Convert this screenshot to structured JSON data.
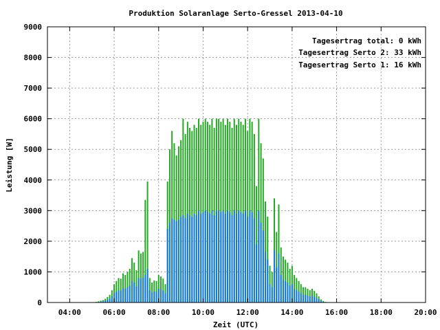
{
  "chart_data": {
    "type": "bar",
    "title": "Produktion Solaranlage Serto-Gressel 2013-04-10",
    "xlabel": "Zeit (UTC)",
    "ylabel": "Leistung [W]",
    "xlim": [
      3.0,
      20.0
    ],
    "ylim": [
      0,
      9000
    ],
    "xticks": [
      4,
      6,
      8,
      10,
      12,
      14,
      16,
      18,
      20
    ],
    "xtick_labels": [
      "04:00",
      "06:00",
      "08:00",
      "10:00",
      "12:00",
      "14:00",
      "16:00",
      "18:00",
      "20:00"
    ],
    "yticks": [
      0,
      1000,
      2000,
      3000,
      4000,
      5000,
      6000,
      7000,
      8000,
      9000
    ],
    "ytick_labels": [
      "0",
      "1000",
      "2000",
      "3000",
      "4000",
      "5000",
      "6000",
      "7000",
      "8000",
      "9000"
    ],
    "grid": true,
    "legend_position": "top-right",
    "legend": [
      {
        "label": "Tagesertrag total: 0 kWh",
        "color": "#cc0000"
      },
      {
        "label": "Tagesertrag Serto 2: 33 kWh",
        "color": "#119911"
      },
      {
        "label": "Tagesertrag Serto 1: 16 kWh",
        "color": "#1177dd"
      }
    ],
    "x_start": 5.1,
    "x_step": 0.1,
    "series": [
      {
        "name": "Serto 2",
        "color": "#22aa22",
        "values": [
          0,
          20,
          40,
          60,
          80,
          120,
          180,
          250,
          400,
          600,
          700,
          800,
          780,
          950,
          900,
          1000,
          1100,
          1450,
          1300,
          1050,
          1700,
          1600,
          1650,
          3350,
          3950,
          800,
          650,
          720,
          700,
          900,
          850,
          780,
          600,
          3950,
          5000,
          5600,
          5200,
          4800,
          5100,
          5300,
          6000,
          5500,
          5900,
          5700,
          5600,
          5800,
          5700,
          6000,
          5800,
          5900,
          6000,
          5900,
          5800,
          6000,
          5700,
          6000,
          6000,
          5900,
          6000,
          5800,
          6000,
          5900,
          5700,
          6000,
          5800,
          6000,
          5900,
          5800,
          6000,
          5600,
          6000,
          5900,
          5500,
          3800,
          6000,
          5200,
          4700,
          3300,
          2800,
          1200,
          1000,
          3400,
          2300,
          3200,
          1800,
          1500,
          1400,
          1300,
          1100,
          1200,
          900,
          800,
          700,
          600,
          500,
          500,
          450,
          400,
          450,
          380,
          300,
          200,
          100,
          50,
          20,
          0
        ]
      },
      {
        "name": "Serto 1",
        "color": "#1177dd",
        "values": [
          0,
          10,
          20,
          30,
          40,
          60,
          90,
          130,
          200,
          300,
          350,
          400,
          390,
          470,
          450,
          500,
          550,
          700,
          650,
          520,
          800,
          780,
          800,
          900,
          1100,
          400,
          330,
          360,
          350,
          450,
          430,
          390,
          300,
          2400,
          2600,
          2750,
          2700,
          2650,
          2700,
          2800,
          2850,
          2750,
          2900,
          2850,
          2800,
          2900,
          2850,
          3000,
          2900,
          2950,
          3000,
          2950,
          2900,
          3000,
          2850,
          3000,
          3000,
          2950,
          3000,
          2900,
          3000,
          2950,
          2850,
          3000,
          2900,
          3000,
          2950,
          2900,
          3000,
          2800,
          3000,
          2950,
          2750,
          1900,
          3000,
          2600,
          2350,
          1650,
          1400,
          600,
          500,
          1700,
          1150,
          1600,
          900,
          750,
          700,
          650,
          550,
          600,
          450,
          400,
          350,
          300,
          250,
          250,
          225,
          200,
          225,
          190,
          150,
          100,
          50,
          25,
          10,
          0
        ]
      }
    ]
  }
}
